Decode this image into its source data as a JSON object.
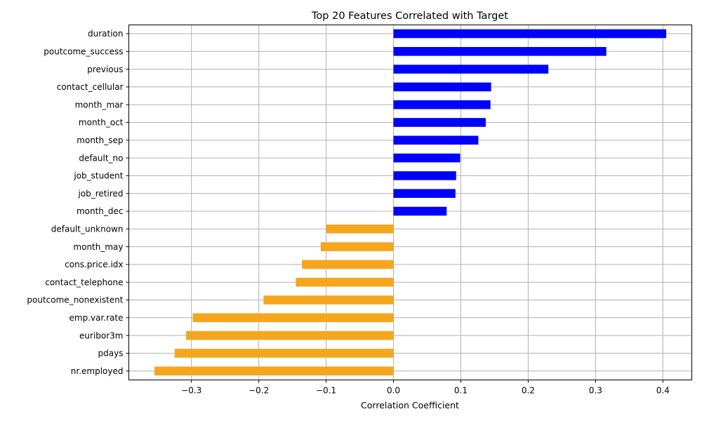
{
  "chart_data": {
    "type": "bar",
    "orientation": "horizontal",
    "title": "Top 20 Features Correlated with Target",
    "xlabel": "Correlation Coefficient",
    "ylabel": "",
    "xlim": [
      -0.393,
      0.443
    ],
    "xticks": [
      -0.3,
      -0.2,
      -0.1,
      0.0,
      0.1,
      0.2,
      0.3,
      0.4
    ],
    "xtick_labels": [
      "−0.3",
      "−0.2",
      "−0.1",
      "0.0",
      "0.1",
      "0.2",
      "0.3",
      "0.4"
    ],
    "grid": true,
    "colors": {
      "positive": "#0000ff",
      "negative": "#f5a61c"
    },
    "categories": [
      "duration",
      "poutcome_success",
      "previous",
      "contact_cellular",
      "month_mar",
      "month_oct",
      "month_sep",
      "default_no",
      "job_student",
      "job_retired",
      "month_dec",
      "default_unknown",
      "month_may",
      "cons.price.idx",
      "contact_telephone",
      "poutcome_nonexistent",
      "emp.var.rate",
      "euribor3m",
      "pdays",
      "nr.employed"
    ],
    "values": [
      0.405,
      0.316,
      0.23,
      0.145,
      0.144,
      0.137,
      0.126,
      0.099,
      0.093,
      0.092,
      0.079,
      -0.1,
      -0.108,
      -0.136,
      -0.145,
      -0.193,
      -0.298,
      -0.308,
      -0.325,
      -0.355
    ]
  }
}
